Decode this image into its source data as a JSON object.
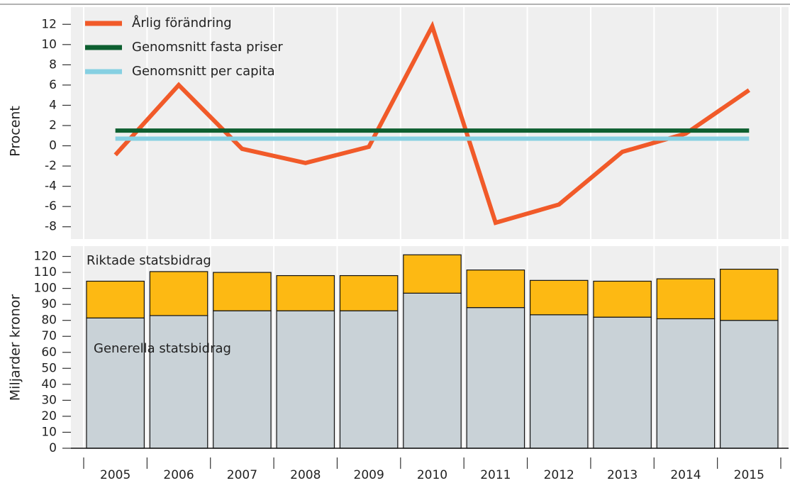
{
  "chart_data": [
    {
      "type": "line",
      "y_label": "Procent",
      "categories": [
        "2005",
        "2006",
        "2007",
        "2008",
        "2009",
        "2010",
        "2011",
        "2012",
        "2013",
        "2014",
        "2015"
      ],
      "series": [
        {
          "name": "Årlig förändring",
          "color": "#f15a29",
          "values": [
            -0.9,
            6.0,
            -0.3,
            -1.7,
            -0.1,
            11.8,
            -7.6,
            -5.8,
            -0.6,
            1.2,
            5.5
          ]
        },
        {
          "name": "Genomsnitt fasta priser",
          "color": "#0d5f30",
          "values": [
            1.5,
            1.5,
            1.5,
            1.5,
            1.5,
            1.5,
            1.5,
            1.5,
            1.5,
            1.5,
            1.5
          ]
        },
        {
          "name": "Genomsnitt per capita",
          "color": "#86d0e2",
          "values": [
            0.7,
            0.7,
            0.7,
            0.7,
            0.7,
            0.7,
            0.7,
            0.7,
            0.7,
            0.7,
            0.7
          ]
        }
      ],
      "ylim": [
        -9,
        13
      ],
      "yticks": [
        -8,
        -6,
        -4,
        -2,
        0,
        2,
        4,
        6,
        8,
        10,
        12
      ],
      "legend": "upper left"
    },
    {
      "type": "bar",
      "stacked": true,
      "y_label": "Miljarder kronor",
      "categories": [
        "2005",
        "2006",
        "2007",
        "2008",
        "2009",
        "2010",
        "2011",
        "2012",
        "2013",
        "2014",
        "2015"
      ],
      "series": [
        {
          "name": "Generella statsbidrag",
          "color": "#c9d2d7",
          "values": [
            81.5,
            83,
            86,
            86,
            86,
            97,
            88,
            83.5,
            82,
            81,
            80
          ]
        },
        {
          "name": "Riktade statsbidrag",
          "color": "#fdb913",
          "values": [
            23,
            27.5,
            24,
            22,
            22,
            24,
            23.5,
            21.5,
            22.5,
            25,
            32
          ]
        }
      ],
      "ylim": [
        0,
        126
      ],
      "yticks": [
        0,
        10,
        20,
        30,
        40,
        50,
        60,
        70,
        80,
        90,
        100,
        110,
        120
      ]
    }
  ]
}
